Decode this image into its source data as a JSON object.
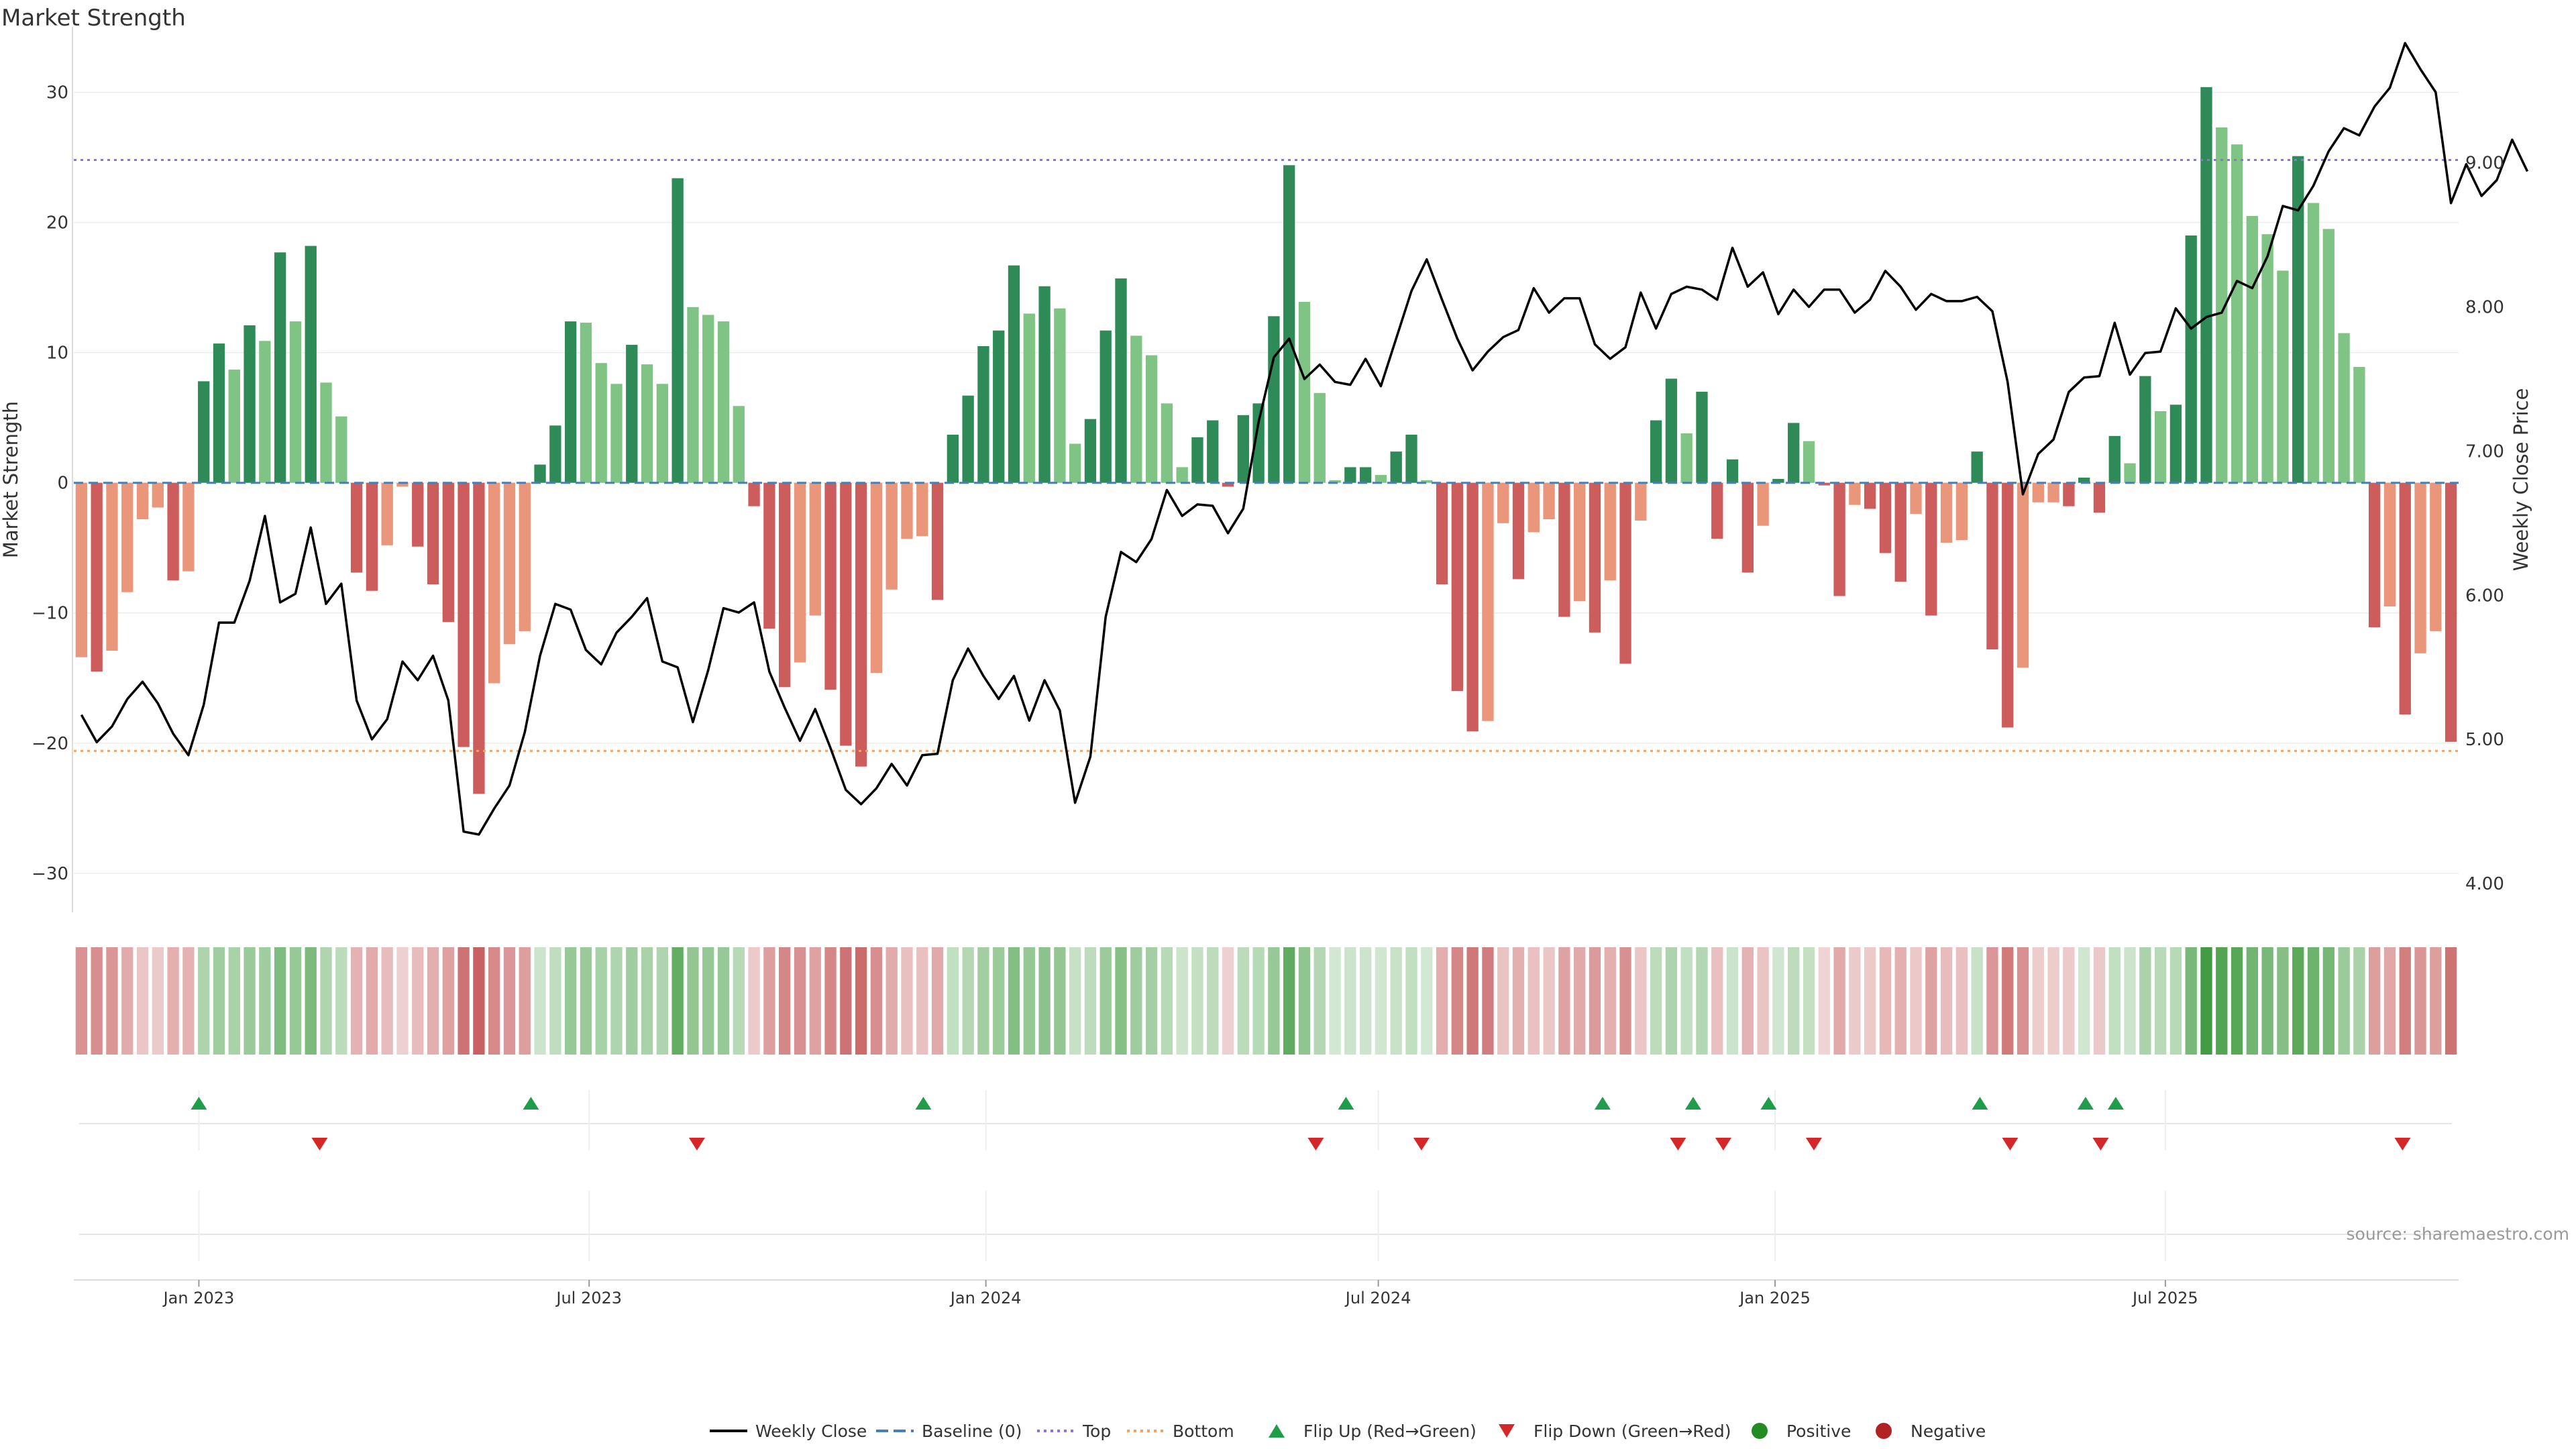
{
  "title": "Market Strength",
  "source_note": "source: sharemaestro.com",
  "colors": {
    "positive_dark": "#2e8b57",
    "positive_light": "#7fc485",
    "negative_dark": "#cd5c5c",
    "negative_light": "#e9967a",
    "price_line": "#000000",
    "baseline": "#4a7fb5",
    "top": "#9370db",
    "bottom": "#f4a460",
    "flip_up": "#1f9d4a",
    "flip_down": "#d62728",
    "legend_positive": "#228b22",
    "legend_negative": "#b22222"
  },
  "legend": [
    {
      "key": "weekly-close",
      "label": "Weekly Close",
      "kind": "line",
      "color": "#000000"
    },
    {
      "key": "baseline",
      "label": "Baseline (0)",
      "kind": "dash",
      "color": "#4a7fb5"
    },
    {
      "key": "top",
      "label": "Top",
      "kind": "dot",
      "color": "#9370db"
    },
    {
      "key": "bottom",
      "label": "Bottom",
      "kind": "dot",
      "color": "#f4a460"
    },
    {
      "key": "flip-up",
      "label": "Flip Up (Red→Green)",
      "kind": "up",
      "color": "#1f9d4a"
    },
    {
      "key": "flip-down",
      "label": "Flip Down (Green→Red)",
      "kind": "down",
      "color": "#d62728"
    },
    {
      "key": "positive",
      "label": "Positive",
      "kind": "circle",
      "color": "#228b22"
    },
    {
      "key": "negative",
      "label": "Negative",
      "kind": "circle",
      "color": "#b22222"
    }
  ],
  "chart_data": {
    "type": "bar+line",
    "title": "Market Strength",
    "ylabel_left": "Market Strength",
    "ylabel_right": "Weekly Close Price",
    "ylim_left": [
      -33,
      34
    ],
    "ylim_right": [
      3.8,
      9.85
    ],
    "yticks_left": [
      -30,
      -20,
      -10,
      0,
      10,
      20,
      30
    ],
    "yticks_left_labels": [
      "−30",
      "−20",
      "−10",
      "0",
      "10",
      "20",
      "30"
    ],
    "yticks_right": [
      4.0,
      5.0,
      6.0,
      7.0,
      8.0,
      9.0
    ],
    "yticks_right_labels": [
      "4.00",
      "5.00",
      "6.00",
      "7.00",
      "8.00",
      "9.00"
    ],
    "x_start_date": "2022-11-04",
    "x_end_date": "2025-11-14",
    "xticks": [
      {
        "date": "2023-01-01",
        "label": "Jan 2023"
      },
      {
        "date": "2023-07-01",
        "label": "Jul 2023"
      },
      {
        "date": "2024-01-01",
        "label": "Jan 2024"
      },
      {
        "date": "2024-07-01",
        "label": "Jul 2024"
      },
      {
        "date": "2025-01-01",
        "label": "Jan 2025"
      },
      {
        "date": "2025-07-01",
        "label": "Jul 2025"
      }
    ],
    "top_line": 24.8,
    "bottom_line": -20.6,
    "baseline": 0,
    "grid": true,
    "legend_position": "bottom",
    "strength": [
      -13.4,
      -14.5,
      -12.9,
      -8.4,
      -2.8,
      -1.9,
      -7.5,
      -6.8,
      7.8,
      10.7,
      8.7,
      12.1,
      10.9,
      17.7,
      12.4,
      18.2,
      7.7,
      5.1,
      -6.9,
      -8.3,
      -4.8,
      -0.3,
      -4.9,
      -7.8,
      -10.7,
      -20.3,
      -23.9,
      -15.4,
      -12.4,
      -11.4,
      1.4,
      4.4,
      12.4,
      12.3,
      9.2,
      7.6,
      10.6,
      9.1,
      7.6,
      23.4,
      13.5,
      12.9,
      12.4,
      5.9,
      -1.8,
      -11.2,
      -15.7,
      -13.8,
      -10.2,
      -15.9,
      -20.2,
      -21.8,
      -14.6,
      -8.2,
      -4.3,
      -4.1,
      -9.0,
      3.7,
      6.7,
      10.5,
      11.7,
      16.7,
      13.0,
      15.1,
      13.4,
      3.0,
      4.9,
      11.7,
      15.7,
      11.3,
      9.8,
      6.1,
      1.2,
      3.5,
      4.8,
      -0.3,
      5.2,
      6.1,
      12.8,
      24.4,
      13.9,
      6.9,
      0.2,
      1.2,
      1.2,
      0.6,
      2.4,
      3.7,
      0.2,
      -7.8,
      -16.0,
      -19.1,
      -18.3,
      -3.1,
      -7.4,
      -3.8,
      -2.8,
      -10.3,
      -9.1,
      -11.5,
      -7.5,
      -13.9,
      -2.9,
      4.8,
      8.0,
      3.8,
      7.0,
      -4.3,
      1.8,
      -6.9,
      -3.3,
      0.3,
      4.6,
      3.2,
      -0.2,
      -8.7,
      -1.7,
      -2.0,
      -5.4,
      -7.6,
      -2.4,
      -10.2,
      -4.6,
      -4.4,
      2.4,
      -12.8,
      -18.8,
      -14.2,
      -1.5,
      -1.5,
      -1.8,
      0.4,
      -2.3,
      3.6,
      1.5,
      8.2,
      5.5,
      6.0,
      19.0,
      30.4,
      27.3,
      26.0,
      20.5,
      19.1,
      16.3,
      25.1,
      21.5,
      19.5,
      11.5,
      8.9,
      -11.1,
      -9.5,
      -17.8,
      -13.1,
      -11.4,
      -19.9
    ],
    "close": [
      5.17,
      4.98,
      5.09,
      5.28,
      5.4,
      5.25,
      5.04,
      4.89,
      5.24,
      5.81,
      5.81,
      6.1,
      6.55,
      5.95,
      6.01,
      6.47,
      5.94,
      6.08,
      5.27,
      5.0,
      5.14,
      5.54,
      5.41,
      5.58,
      5.27,
      4.36,
      4.34,
      4.52,
      4.68,
      5.05,
      5.58,
      5.94,
      5.9,
      5.62,
      5.52,
      5.74,
      5.85,
      5.98,
      5.54,
      5.5,
      5.12,
      5.48,
      5.91,
      5.88,
      5.95,
      5.47,
      5.22,
      4.99,
      5.21,
      4.94,
      4.65,
      4.55,
      4.66,
      4.83,
      4.68,
      4.89,
      4.9,
      5.41,
      5.63,
      5.44,
      5.28,
      5.44,
      5.13,
      5.41,
      5.2,
      4.56,
      4.88,
      5.85,
      6.3,
      6.23,
      6.39,
      6.73,
      6.55,
      6.63,
      6.62,
      6.43,
      6.6,
      7.2,
      7.65,
      7.78,
      7.5,
      7.6,
      7.48,
      7.46,
      7.64,
      7.45,
      7.78,
      8.11,
      8.33,
      8.05,
      7.78,
      7.56,
      7.69,
      7.79,
      7.84,
      8.13,
      7.96,
      8.06,
      8.06,
      7.74,
      7.64,
      7.72,
      8.1,
      7.85,
      8.09,
      8.14,
      8.12,
      8.05,
      8.41,
      8.14,
      8.24,
      7.95,
      8.12,
      8.0,
      8.12,
      8.12,
      7.96,
      8.05,
      8.25,
      8.14,
      7.98,
      8.09,
      8.04,
      8.04,
      8.07,
      7.97,
      7.48,
      6.7,
      6.98,
      7.08,
      7.41,
      7.51,
      7.52,
      7.89,
      7.53,
      7.68,
      7.69,
      7.99,
      7.85,
      7.93,
      7.96,
      8.18,
      8.13,
      8.35,
      8.7,
      8.67,
      8.84,
      9.08,
      9.24,
      9.19,
      9.39,
      9.52,
      9.83,
      9.65,
      9.49,
      8.72,
      8.99,
      8.77,
      8.88,
      9.16,
      8.94
    ],
    "flips_up": [
      "2023-01-01",
      "2023-06-04",
      "2023-12-03",
      "2024-06-16",
      "2024-10-13",
      "2024-11-24",
      "2024-12-29",
      "2025-04-06",
      "2025-05-25",
      "2025-06-08"
    ],
    "flips_down": [
      "2023-02-26",
      "2023-08-20",
      "2024-06-02",
      "2024-07-21",
      "2024-11-17",
      "2024-12-08",
      "2025-01-19",
      "2025-04-20",
      "2025-06-01",
      "2025-10-19"
    ]
  }
}
